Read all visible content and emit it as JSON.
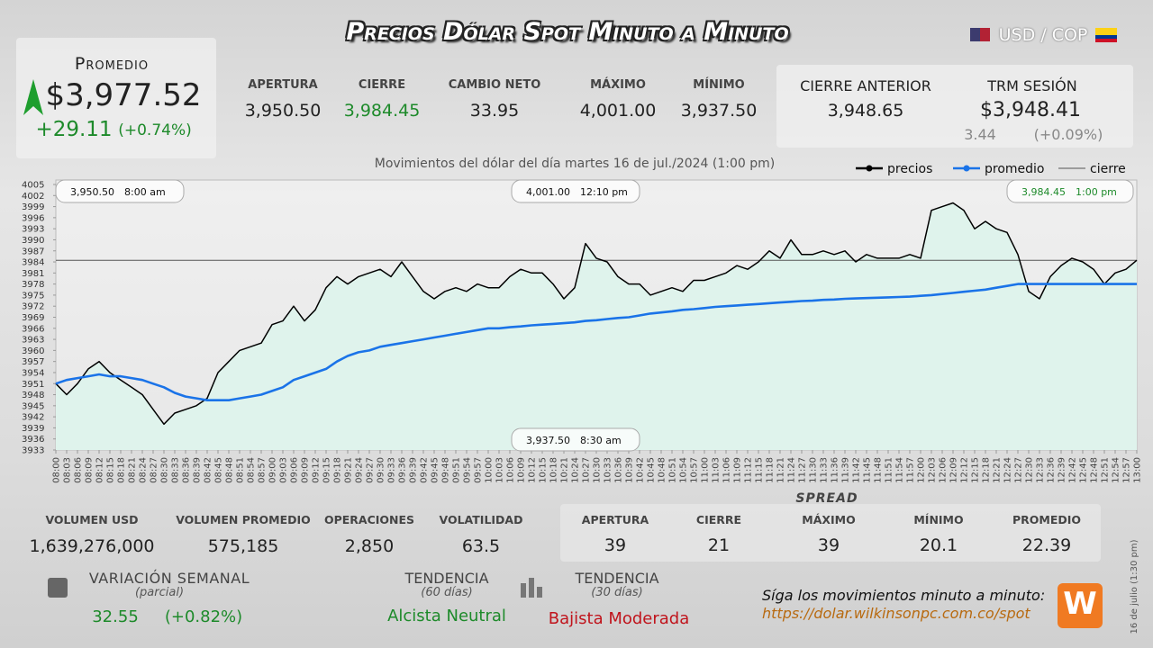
{
  "header": {
    "title": "Precios Dólar Spot Minuto a Minuto",
    "currency": "USD / COP"
  },
  "promedio": {
    "label": "Promedio",
    "value": "$3,977.52",
    "change": "+29.11",
    "change_pct": "(+0.74%)"
  },
  "stats": [
    {
      "label": "APERTURA",
      "value": "3,950.50"
    },
    {
      "label": "CIERRE",
      "value": "3,984.45"
    },
    {
      "label": "CAMBIO NETO",
      "value": "33.95"
    },
    {
      "label": "MÁXIMO",
      "value": "4,001.00"
    },
    {
      "label": "MÍNIMO",
      "value": "3,937.50"
    }
  ],
  "previous": {
    "label": "CIERRE ANTERIOR",
    "value": "3,948.65"
  },
  "trm": {
    "label": "TRM SESIÓN",
    "value": "$3,948.41",
    "change": "3.44",
    "change_pct": "(+0.09%)"
  },
  "chart_data": {
    "type": "line",
    "subtitle": "Movimientos del dólar del día martes 16 de jul./2024 (1:00 pm)",
    "categories": [
      "08:00",
      "08:03",
      "08:06",
      "08:09",
      "08:12",
      "08:15",
      "08:18",
      "08:21",
      "08:24",
      "08:27",
      "08:30",
      "08:33",
      "08:36",
      "08:39",
      "08:42",
      "08:45",
      "08:48",
      "08:51",
      "08:54",
      "08:57",
      "09:00",
      "09:03",
      "09:06",
      "09:09",
      "09:12",
      "09:15",
      "09:18",
      "09:21",
      "09:24",
      "09:27",
      "09:30",
      "09:33",
      "09:36",
      "09:39",
      "09:42",
      "09:45",
      "09:48",
      "09:51",
      "09:54",
      "09:57",
      "10:00",
      "10:03",
      "10:06",
      "10:09",
      "10:12",
      "10:15",
      "10:18",
      "10:21",
      "10:24",
      "10:27",
      "10:30",
      "10:33",
      "10:36",
      "10:39",
      "10:42",
      "10:45",
      "10:48",
      "10:51",
      "10:54",
      "10:57",
      "11:00",
      "11:03",
      "11:06",
      "11:09",
      "11:12",
      "11:15",
      "11:18",
      "11:21",
      "11:24",
      "11:27",
      "11:30",
      "11:33",
      "11:36",
      "11:39",
      "11:42",
      "11:45",
      "11:48",
      "11:51",
      "11:54",
      "11:57",
      "12:00",
      "12:03",
      "12:06",
      "12:09",
      "12:12",
      "12:15",
      "12:18",
      "12:21",
      "12:24",
      "12:27",
      "12:30",
      "12:33",
      "12:36",
      "12:39",
      "12:42",
      "12:45",
      "12:48",
      "12:51",
      "12:54",
      "12:57",
      "13:00"
    ],
    "series": [
      {
        "name": "precios",
        "color": "#000000",
        "values": [
          3951,
          3948,
          3951,
          3955,
          3957,
          3954,
          3952,
          3950,
          3948,
          3944,
          3940,
          3943,
          3944,
          3945,
          3947,
          3954,
          3957,
          3960,
          3961,
          3962,
          3967,
          3968,
          3972,
          3968,
          3971,
          3977,
          3980,
          3978,
          3980,
          3981,
          3982,
          3980,
          3984,
          3980,
          3976,
          3974,
          3976,
          3977,
          3976,
          3978,
          3977,
          3977,
          3980,
          3982,
          3981,
          3981,
          3978,
          3974,
          3977,
          3989,
          3985,
          3984,
          3980,
          3978,
          3978,
          3975,
          3976,
          3977,
          3976,
          3979,
          3979,
          3980,
          3981,
          3983,
          3982,
          3984,
          3987,
          3985,
          3990,
          3986,
          3986,
          3987,
          3986,
          3987,
          3984,
          3986,
          3985,
          3985,
          3985,
          3986,
          3985,
          3998,
          3999,
          4000,
          3998,
          3993,
          3995,
          3993,
          3992,
          3986,
          3976,
          3974,
          3980,
          3983,
          3985,
          3984,
          3982,
          3978,
          3981,
          3982,
          3984.45
        ]
      },
      {
        "name": "promedio",
        "color": "#1a73e8",
        "values": [
          3951,
          3952,
          3952.5,
          3953,
          3953.5,
          3953,
          3953,
          3952.5,
          3952,
          3951,
          3950,
          3948.5,
          3947.5,
          3947,
          3946.5,
          3946.5,
          3946.5,
          3947,
          3947.5,
          3948,
          3949,
          3950,
          3952,
          3953,
          3954,
          3955,
          3957,
          3958.5,
          3959.5,
          3960,
          3961,
          3961.5,
          3962,
          3962.5,
          3963,
          3963.5,
          3964,
          3964.5,
          3965,
          3965.5,
          3966,
          3966,
          3966.3,
          3966.5,
          3966.8,
          3967,
          3967.2,
          3967.4,
          3967.6,
          3968,
          3968.2,
          3968.5,
          3968.8,
          3969,
          3969.5,
          3970,
          3970.3,
          3970.6,
          3971,
          3971.2,
          3971.5,
          3971.8,
          3972,
          3972.2,
          3972.4,
          3972.6,
          3972.8,
          3973,
          3973.2,
          3973.4,
          3973.5,
          3973.7,
          3973.8,
          3974,
          3974.1,
          3974.2,
          3974.3,
          3974.4,
          3974.5,
          3974.6,
          3974.8,
          3975,
          3975.3,
          3975.6,
          3975.9,
          3976.2,
          3976.5,
          3977,
          3977.5,
          3978,
          3978,
          3978,
          3978,
          3978,
          3978,
          3978,
          3978,
          3978,
          3978,
          3978,
          3978
        ]
      }
    ],
    "reference_line": {
      "name": "cierre",
      "value": 3984.45,
      "color": "#555555"
    },
    "area_color": "#dff3ec",
    "legend": "top-right",
    "ylim": [
      3933,
      4005
    ],
    "yticks": [
      3933,
      3936,
      3939,
      3942,
      3945,
      3948,
      3951,
      3954,
      3957,
      3960,
      3963,
      3966,
      3969,
      3972,
      3975,
      3978,
      3981,
      3984,
      3987,
      3990,
      3993,
      3996,
      3999,
      4002,
      4005
    ],
    "annotations": [
      {
        "value": "3,950.50",
        "time": "8:00 am"
      },
      {
        "value": "4,001.00",
        "time": "12:10 pm"
      },
      {
        "value": "3,984.45",
        "time": "1:00 pm"
      },
      {
        "value": "3,937.50",
        "time": "8:30 am"
      }
    ]
  },
  "volume": [
    {
      "label": "VOLUMEN USD",
      "value": "1,639,276,000"
    },
    {
      "label": "VOLUMEN PROMEDIO",
      "value": "575,185"
    },
    {
      "label": "OPERACIONES",
      "value": "2,850"
    },
    {
      "label": "VOLATILIDAD",
      "value": "63.5"
    }
  ],
  "spread": {
    "title": "SPREAD",
    "items": [
      {
        "label": "APERTURA",
        "value": "39"
      },
      {
        "label": "CIERRE",
        "value": "21"
      },
      {
        "label": "MÁXIMO",
        "value": "39"
      },
      {
        "label": "MÍNIMO",
        "value": "20.1"
      },
      {
        "label": "PROMEDIO",
        "value": "22.39"
      }
    ]
  },
  "weekly": {
    "label": "VARIACIÓN SEMANAL",
    "sub": "(parcial)",
    "value": "32.55",
    "pct": "(+0.82%)"
  },
  "trends": [
    {
      "label": "TENDENCIA",
      "sub": "(60 días)",
      "value": "Alcista Neutral"
    },
    {
      "label": "TENDENCIA",
      "sub": "(30 días)",
      "value": "Bajista Moderada"
    }
  ],
  "footer": {
    "cta": "Síga los movimientos minuto a minuto:",
    "url": "https://dolar.wilkinsonpc.com.co/spot",
    "stamp": "16 de julio (1:30 pm)",
    "logo": "W"
  }
}
